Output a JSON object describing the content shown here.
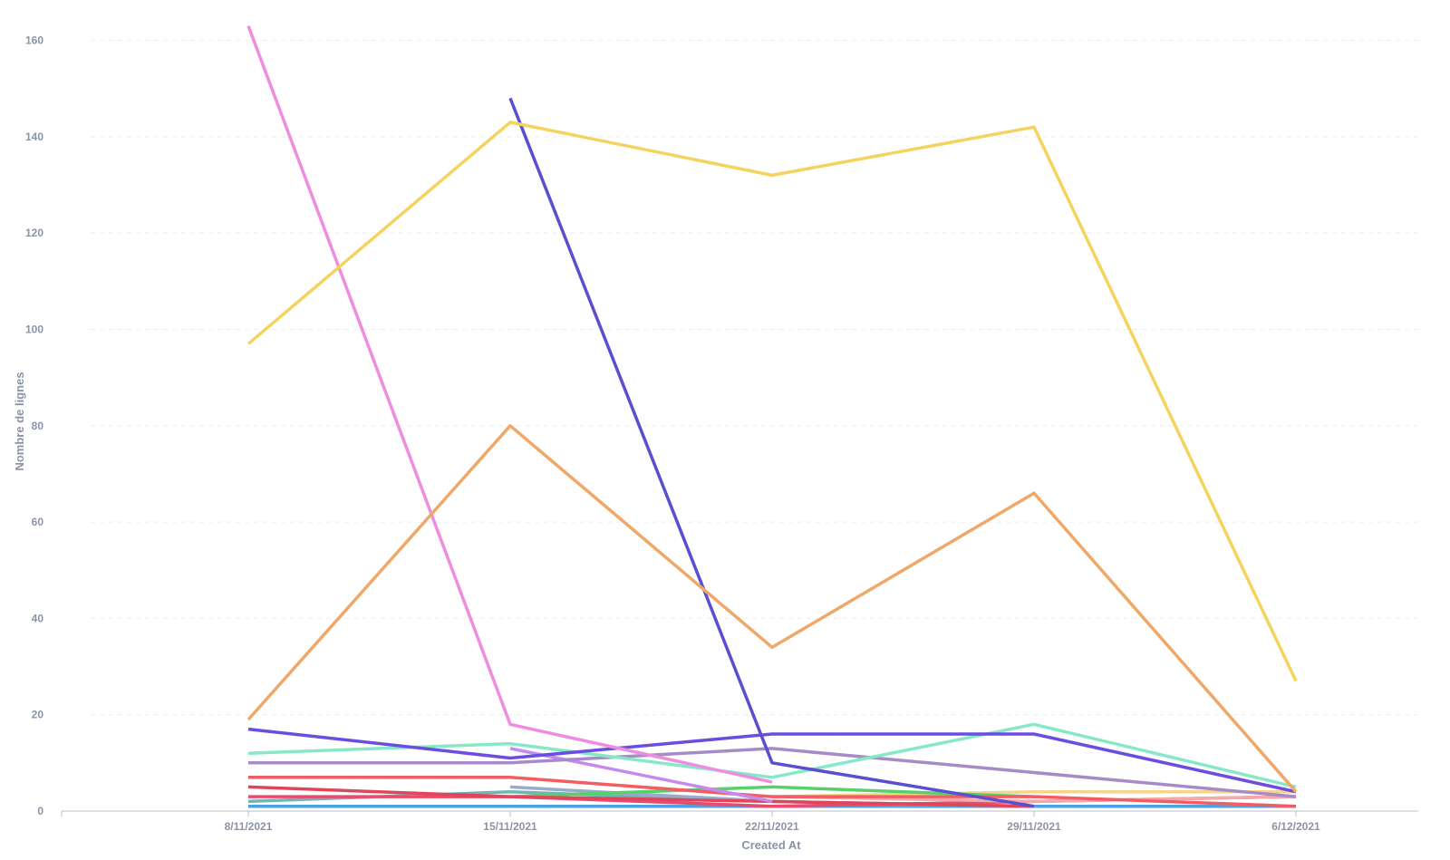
{
  "chart_data": {
    "type": "line",
    "title": "",
    "xlabel": "Created At",
    "ylabel": "Nombre de lignes",
    "categories": [
      "8/11/2021",
      "15/11/2021",
      "22/11/2021",
      "29/11/2021",
      "6/12/2021"
    ],
    "ylim": [
      0,
      165
    ],
    "y_ticks": [
      0,
      20,
      40,
      60,
      80,
      100,
      120,
      140,
      160
    ],
    "grid": true,
    "legend": "none",
    "series": [
      {
        "color": "#f4d35e",
        "values": [
          97,
          143,
          132,
          142,
          27
        ]
      },
      {
        "color": "#f0a868",
        "values": [
          19,
          80,
          34,
          66,
          4
        ]
      },
      {
        "color": "#ee8de0",
        "values": [
          163,
          18,
          6,
          null,
          null
        ]
      },
      {
        "color": "#5a4fcf",
        "values": [
          null,
          148,
          10,
          1,
          null
        ]
      },
      {
        "color": "#6b4ee0",
        "values": [
          17,
          11,
          16,
          16,
          4
        ]
      },
      {
        "color": "#86e8c8",
        "values": [
          12,
          14,
          7,
          18,
          5
        ]
      },
      {
        "color": "#a78bc9",
        "values": [
          10,
          10,
          13,
          8,
          3
        ]
      },
      {
        "color": "#c58af0",
        "values": [
          null,
          13,
          2,
          null,
          null
        ]
      },
      {
        "color": "#f25d63",
        "values": [
          7,
          7,
          3,
          3,
          1
        ]
      },
      {
        "color": "#e0465a",
        "values": [
          5,
          3,
          2,
          1,
          null
        ]
      },
      {
        "color": "#57d06a",
        "values": [
          null,
          3,
          5,
          3,
          null
        ]
      },
      {
        "color": "#f6d58a",
        "values": [
          null,
          null,
          3,
          4,
          4
        ]
      },
      {
        "color": "#f3a9a9",
        "values": [
          null,
          null,
          3,
          2,
          3
        ]
      },
      {
        "color": "#e94b70",
        "values": [
          3,
          3,
          1,
          2,
          3
        ]
      },
      {
        "color": "#99aacc",
        "values": [
          null,
          5,
          2,
          1,
          null
        ]
      },
      {
        "color": "#70b6b6",
        "values": [
          2,
          4,
          2,
          1,
          null
        ]
      },
      {
        "color": "#4ba3e2",
        "values": [
          1,
          1,
          1,
          1,
          1
        ]
      }
    ]
  }
}
